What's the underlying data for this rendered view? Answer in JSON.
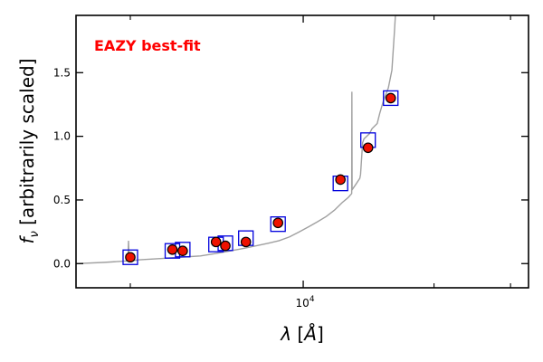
{
  "chart_data": {
    "type": "scatter",
    "annotation": "EAZY best-fit",
    "annotation_color": "#ff0000",
    "xlabel": "λ [Å]",
    "ylabel": "f_ν [arbitrarily scaled]",
    "xscale": "log",
    "xlim": [
      3000,
      33000
    ],
    "ylim": [
      -0.19,
      1.95
    ],
    "x_tick_labels": [
      {
        "value": 10000,
        "base": "10",
        "exp": "4"
      }
    ],
    "x_minor_ticks": [
      4000,
      20000,
      30000
    ],
    "y_ticks": [
      0.0,
      0.5,
      1.0,
      1.5
    ],
    "y_tick_labels": [
      "0.0",
      "0.5",
      "1.0",
      "1.5"
    ],
    "grid": false,
    "colors": {
      "observed": "#ee1100",
      "model_photometry": "#0000dd",
      "template": "#a0a0a0"
    },
    "series": [
      {
        "kind": "template_sed",
        "points": [
          [
            3000,
            0.0
          ],
          [
            3500,
            0.01
          ],
          [
            3900,
            0.02
          ],
          [
            3950,
            0.02
          ],
          [
            3962,
            0.18
          ],
          [
            3975,
            0.02
          ],
          [
            4200,
            0.03
          ],
          [
            4700,
            0.04
          ],
          [
            5200,
            0.05
          ],
          [
            5800,
            0.06
          ],
          [
            6300,
            0.08
          ],
          [
            6800,
            0.1
          ],
          [
            7300,
            0.12
          ],
          [
            7800,
            0.14
          ],
          [
            8300,
            0.16
          ],
          [
            8800,
            0.18
          ],
          [
            9300,
            0.21
          ],
          [
            9800,
            0.25
          ],
          [
            10300,
            0.29
          ],
          [
            10800,
            0.33
          ],
          [
            11300,
            0.37
          ],
          [
            11800,
            0.42
          ],
          [
            12300,
            0.48
          ],
          [
            12700,
            0.52
          ],
          [
            12930,
            0.55
          ],
          [
            12942,
            1.35
          ],
          [
            12958,
            0.58
          ],
          [
            13200,
            0.62
          ],
          [
            13500,
            0.67
          ],
          [
            13550,
            0.7
          ],
          [
            13700,
            0.95
          ],
          [
            13800,
            0.98
          ],
          [
            14000,
            1.0
          ],
          [
            14200,
            1.02
          ],
          [
            14400,
            1.06
          ],
          [
            14800,
            1.1
          ],
          [
            15000,
            1.18
          ],
          [
            15300,
            1.28
          ],
          [
            15700,
            1.38
          ],
          [
            16000,
            1.52
          ],
          [
            16200,
            1.8
          ],
          [
            16300,
            1.95
          ],
          [
            16500,
            1.95
          ],
          [
            17000,
            1.95
          ],
          [
            18000,
            1.95
          ],
          [
            20000,
            1.95
          ],
          [
            33000,
            1.95
          ]
        ]
      },
      {
        "kind": "model_photometry",
        "x": [
          4000,
          5000,
          5280,
          6300,
          6620,
          7380,
          8750,
          12180,
          14100,
          15900
        ],
        "y": [
          0.05,
          0.1,
          0.11,
          0.15,
          0.16,
          0.2,
          0.31,
          0.63,
          0.97,
          1.3
        ]
      },
      {
        "kind": "observed",
        "x": [
          4000,
          5000,
          5280,
          6300,
          6620,
          7380,
          8750,
          12180,
          14100,
          15900
        ],
        "y": [
          0.05,
          0.11,
          0.1,
          0.17,
          0.14,
          0.17,
          0.32,
          0.66,
          0.91,
          1.3
        ],
        "yerr": [
          0.02,
          0.02,
          0.02,
          0.02,
          0.02,
          0.02,
          0.02,
          0.04,
          0.04,
          0.03
        ]
      }
    ]
  }
}
